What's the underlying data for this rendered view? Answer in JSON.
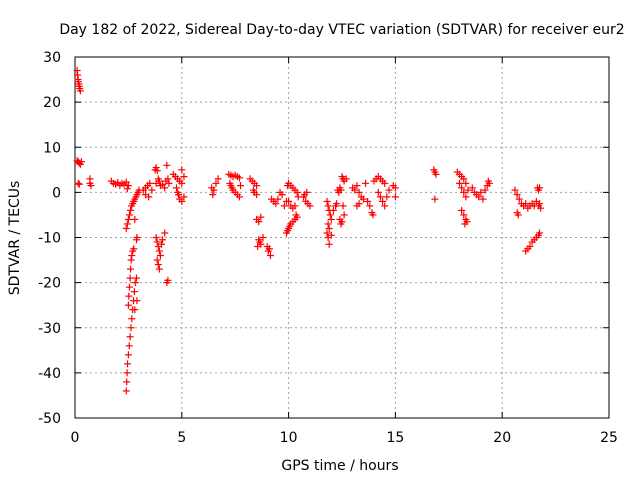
{
  "chart_data": {
    "type": "scatter",
    "title": "Day 182 of 2022, Sidereal Day-to-day VTEC variation (SDTVAR) for receiver eur2",
    "xlabel": "GPS time / hours",
    "ylabel": "SDTVAR / TECUs",
    "xlim": [
      0,
      25
    ],
    "ylim": [
      -50,
      30
    ],
    "xticks": [
      "0",
      "5",
      "10",
      "15",
      "20",
      "25"
    ],
    "yticks": [
      "-50",
      "-40",
      "-30",
      "-20",
      "-10",
      "0",
      "10",
      "20",
      "30"
    ],
    "xtick_values": [
      0,
      5,
      10,
      15,
      20,
      25
    ],
    "ytick_values": [
      -50,
      -40,
      -30,
      -20,
      -10,
      0,
      10,
      20,
      30
    ],
    "grid": true,
    "marker": "+",
    "color": "#ff0000",
    "series": [
      {
        "name": "SDTVAR",
        "points": [
          [
            0.1,
            27
          ],
          [
            0.12,
            26
          ],
          [
            0.14,
            25
          ],
          [
            0.16,
            24.5
          ],
          [
            0.18,
            24
          ],
          [
            0.2,
            23.5
          ],
          [
            0.22,
            23
          ],
          [
            0.25,
            22.5
          ],
          [
            0.1,
            7
          ],
          [
            0.15,
            6.8
          ],
          [
            0.2,
            6.5
          ],
          [
            0.25,
            6.2
          ],
          [
            0.3,
            6.8
          ],
          [
            0.15,
            2
          ],
          [
            0.2,
            1.8
          ],
          [
            0.7,
            3
          ],
          [
            0.7,
            2
          ],
          [
            0.75,
            1.5
          ],
          [
            1.7,
            2.5
          ],
          [
            1.8,
            2
          ],
          [
            1.9,
            1.8
          ],
          [
            2.0,
            2.2
          ],
          [
            2.1,
            1.5
          ],
          [
            2.2,
            2
          ],
          [
            2.3,
            1.8
          ],
          [
            2.4,
            2.3
          ],
          [
            2.5,
            1.5
          ],
          [
            2.45,
            0.8
          ],
          [
            2.4,
            -44
          ],
          [
            2.42,
            -42
          ],
          [
            2.44,
            -40
          ],
          [
            2.46,
            -38
          ],
          [
            2.5,
            -36
          ],
          [
            2.54,
            -34
          ],
          [
            2.58,
            -32
          ],
          [
            2.62,
            -30
          ],
          [
            2.66,
            -28
          ],
          [
            2.7,
            -26
          ],
          [
            2.74,
            -24
          ],
          [
            2.78,
            -22
          ],
          [
            2.82,
            -20
          ],
          [
            2.88,
            -19
          ],
          [
            2.9,
            -24
          ],
          [
            2.8,
            -26
          ],
          [
            2.5,
            -25
          ],
          [
            2.52,
            -23
          ],
          [
            2.55,
            -21
          ],
          [
            2.58,
            -19
          ],
          [
            2.6,
            -17
          ],
          [
            2.63,
            -15
          ],
          [
            2.66,
            -14
          ],
          [
            2.7,
            -13
          ],
          [
            2.75,
            -12.5
          ],
          [
            2.4,
            -8
          ],
          [
            2.45,
            -7
          ],
          [
            2.5,
            -6
          ],
          [
            2.55,
            -5
          ],
          [
            2.6,
            -4
          ],
          [
            2.65,
            -3
          ],
          [
            2.7,
            -2.5
          ],
          [
            2.75,
            -2
          ],
          [
            2.8,
            -1.5
          ],
          [
            2.85,
            -1
          ],
          [
            2.9,
            -0.5
          ],
          [
            2.95,
            0
          ],
          [
            3.0,
            0.5
          ],
          [
            2.8,
            -6
          ],
          [
            2.9,
            -10
          ],
          [
            2.88,
            -10.5
          ],
          [
            3.2,
            0.5
          ],
          [
            3.3,
            1
          ],
          [
            3.4,
            1.5
          ],
          [
            3.5,
            2
          ],
          [
            3.6,
            0.5
          ],
          [
            3.3,
            -0.5
          ],
          [
            3.45,
            -1
          ],
          [
            3.75,
            5
          ],
          [
            3.8,
            5.5
          ],
          [
            3.85,
            4.8
          ],
          [
            3.9,
            3
          ],
          [
            3.95,
            2.5
          ],
          [
            3.8,
            2
          ],
          [
            4.0,
            1.5
          ],
          [
            4.1,
            1.8
          ],
          [
            4.2,
            1
          ],
          [
            3.8,
            -10
          ],
          [
            3.85,
            -11
          ],
          [
            3.9,
            -12
          ],
          [
            3.95,
            -13
          ],
          [
            4.0,
            -14
          ],
          [
            3.85,
            -15
          ],
          [
            3.9,
            -16
          ],
          [
            3.95,
            -17
          ],
          [
            4.05,
            -11.5
          ],
          [
            4.1,
            -10.5
          ],
          [
            4.2,
            -9
          ],
          [
            4.3,
            -20
          ],
          [
            4.35,
            -19.5
          ],
          [
            4.25,
            2.5
          ],
          [
            4.35,
            3
          ],
          [
            4.3,
            6
          ],
          [
            4.4,
            2
          ],
          [
            4.6,
            4
          ],
          [
            4.7,
            3.5
          ],
          [
            4.8,
            3
          ],
          [
            4.9,
            2.5
          ],
          [
            5.0,
            2
          ],
          [
            5.1,
            3.5
          ],
          [
            4.75,
            1
          ],
          [
            4.8,
            0
          ],
          [
            4.85,
            -0.5
          ],
          [
            4.9,
            -1.5
          ],
          [
            5.0,
            -2
          ],
          [
            5.1,
            -1
          ],
          [
            5.0,
            5
          ],
          [
            6.4,
            1
          ],
          [
            6.5,
            0.5
          ],
          [
            6.45,
            -0.5
          ],
          [
            6.6,
            2
          ],
          [
            6.7,
            3
          ],
          [
            7.2,
            4
          ],
          [
            7.3,
            3.8
          ],
          [
            7.4,
            3.5
          ],
          [
            7.5,
            3.8
          ],
          [
            7.6,
            3.5
          ],
          [
            7.7,
            3.2
          ],
          [
            7.25,
            2
          ],
          [
            7.3,
            1.5
          ],
          [
            7.35,
            1
          ],
          [
            7.4,
            0.5
          ],
          [
            7.5,
            0
          ],
          [
            7.6,
            -0.5
          ],
          [
            7.7,
            -1
          ],
          [
            7.75,
            1.5
          ],
          [
            8.2,
            3
          ],
          [
            8.3,
            2.5
          ],
          [
            8.4,
            2
          ],
          [
            8.5,
            1.5
          ],
          [
            8.35,
            0.5
          ],
          [
            8.4,
            0
          ],
          [
            8.5,
            -0.5
          ],
          [
            8.5,
            -6
          ],
          [
            8.6,
            -6.5
          ],
          [
            8.7,
            -5.5
          ],
          [
            8.6,
            -10.5
          ],
          [
            8.65,
            -11
          ],
          [
            8.7,
            -11.5
          ],
          [
            8.55,
            -12
          ],
          [
            8.8,
            -10
          ],
          [
            9.0,
            -12
          ],
          [
            9.05,
            -13
          ],
          [
            9.1,
            -12.5
          ],
          [
            9.15,
            -14
          ],
          [
            9.2,
            -1.5
          ],
          [
            9.3,
            -2
          ],
          [
            9.4,
            -2.5
          ],
          [
            9.5,
            -1.5
          ],
          [
            9.6,
            0
          ],
          [
            9.7,
            -0.5
          ],
          [
            9.8,
            -3
          ],
          [
            9.9,
            -2
          ],
          [
            9.95,
            1.5
          ],
          [
            10.0,
            2
          ],
          [
            10.1,
            1.5
          ],
          [
            10.2,
            1
          ],
          [
            10.3,
            0.5
          ],
          [
            10.4,
            0
          ],
          [
            10.45,
            -1
          ],
          [
            10.0,
            -2
          ],
          [
            10.1,
            -3
          ],
          [
            10.2,
            -3.5
          ],
          [
            10.3,
            -3
          ],
          [
            9.9,
            -9
          ],
          [
            9.95,
            -8.5
          ],
          [
            10.0,
            -8
          ],
          [
            10.05,
            -7.5
          ],
          [
            10.1,
            -7
          ],
          [
            10.2,
            -6.5
          ],
          [
            10.3,
            -6
          ],
          [
            10.35,
            -5
          ],
          [
            10.4,
            -5.5
          ],
          [
            10.7,
            -1
          ],
          [
            10.8,
            -2
          ],
          [
            10.9,
            -2.5
          ],
          [
            11.0,
            -3
          ],
          [
            10.75,
            -0.5
          ],
          [
            10.85,
            0
          ],
          [
            11.8,
            -2
          ],
          [
            11.85,
            -3
          ],
          [
            11.9,
            -4
          ],
          [
            11.95,
            -5
          ],
          [
            12.0,
            -6
          ],
          [
            11.85,
            -7
          ],
          [
            11.9,
            -8
          ],
          [
            11.8,
            -9
          ],
          [
            11.85,
            -10
          ],
          [
            11.9,
            -11.5
          ],
          [
            12.0,
            -9.5
          ],
          [
            12.1,
            -4
          ],
          [
            12.2,
            -3
          ],
          [
            12.25,
            -2.5
          ],
          [
            12.4,
            -6
          ],
          [
            12.45,
            -7
          ],
          [
            12.5,
            -6.5
          ],
          [
            12.6,
            -5
          ],
          [
            12.55,
            -3
          ],
          [
            12.3,
            0.5
          ],
          [
            12.35,
            0
          ],
          [
            12.4,
            1
          ],
          [
            12.45,
            0.5
          ],
          [
            12.5,
            3.5
          ],
          [
            12.55,
            3
          ],
          [
            12.6,
            2.5
          ],
          [
            12.7,
            3
          ],
          [
            13.0,
            1
          ],
          [
            13.1,
            0.5
          ],
          [
            13.2,
            1.5
          ],
          [
            13.3,
            0
          ],
          [
            13.4,
            -1
          ],
          [
            13.5,
            -1.5
          ],
          [
            13.2,
            -3
          ],
          [
            13.3,
            -2.5
          ],
          [
            13.6,
            2
          ],
          [
            13.7,
            -2
          ],
          [
            13.8,
            -3
          ],
          [
            13.9,
            -4.5
          ],
          [
            13.95,
            -5
          ],
          [
            14.0,
            2.5
          ],
          [
            14.1,
            3
          ],
          [
            14.2,
            3.5
          ],
          [
            14.3,
            3
          ],
          [
            14.4,
            2.5
          ],
          [
            14.5,
            2
          ],
          [
            14.2,
            0
          ],
          [
            14.3,
            -1
          ],
          [
            14.4,
            -2
          ],
          [
            14.5,
            -3
          ],
          [
            14.6,
            -1
          ],
          [
            14.7,
            0.5
          ],
          [
            14.9,
            1.5
          ],
          [
            15.0,
            1
          ],
          [
            15.0,
            -1
          ],
          [
            16.8,
            5
          ],
          [
            16.85,
            4.5
          ],
          [
            16.9,
            4
          ],
          [
            16.85,
            -1.5
          ],
          [
            17.9,
            4.5
          ],
          [
            18.0,
            4
          ],
          [
            18.1,
            3.5
          ],
          [
            18.2,
            3
          ],
          [
            18.3,
            2
          ],
          [
            18.0,
            2
          ],
          [
            18.1,
            1
          ],
          [
            18.2,
            0
          ],
          [
            18.3,
            -1
          ],
          [
            18.4,
            0.5
          ],
          [
            18.1,
            -4
          ],
          [
            18.2,
            -5
          ],
          [
            18.3,
            -6
          ],
          [
            18.25,
            -7
          ],
          [
            18.35,
            -6.5
          ],
          [
            18.6,
            1
          ],
          [
            18.7,
            0
          ],
          [
            18.8,
            -0.5
          ],
          [
            18.9,
            -1
          ],
          [
            19.0,
            0
          ],
          [
            19.1,
            -1.5
          ],
          [
            19.2,
            0.5
          ],
          [
            19.3,
            1.5
          ],
          [
            19.35,
            2.5
          ],
          [
            19.4,
            2
          ],
          [
            20.6,
            0.5
          ],
          [
            20.7,
            -0.5
          ],
          [
            20.8,
            -1.5
          ],
          [
            20.9,
            -2.5
          ],
          [
            21.0,
            -3
          ],
          [
            21.1,
            -2.5
          ],
          [
            21.2,
            -3.5
          ],
          [
            21.3,
            -3
          ],
          [
            21.4,
            -2.5
          ],
          [
            21.5,
            -3
          ],
          [
            21.6,
            -2
          ],
          [
            21.7,
            -3
          ],
          [
            21.75,
            -2.5
          ],
          [
            21.8,
            -3.5
          ],
          [
            20.7,
            -4.5
          ],
          [
            20.75,
            -5
          ],
          [
            21.1,
            -13
          ],
          [
            21.2,
            -12.5
          ],
          [
            21.3,
            -12
          ],
          [
            21.4,
            -11
          ],
          [
            21.5,
            -10.5
          ],
          [
            21.6,
            -10
          ],
          [
            21.7,
            -9.5
          ],
          [
            21.75,
            -9
          ],
          [
            21.65,
            1
          ],
          [
            21.7,
            0.5
          ],
          [
            21.75,
            1
          ]
        ]
      }
    ]
  }
}
